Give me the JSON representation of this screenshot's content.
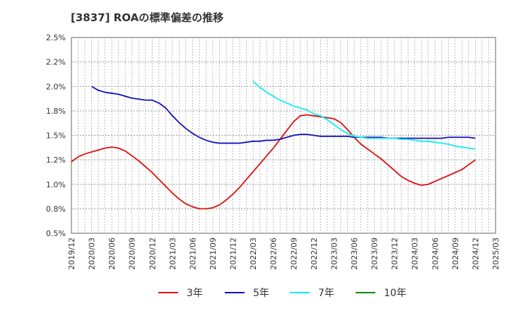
{
  "chart_data": {
    "type": "line",
    "title": "[3837]  ROAの標準偏差の推移",
    "xlabel": "",
    "ylabel": "",
    "ylim": [
      0.5,
      2.5
    ],
    "y_ticks": [
      "2.5%",
      "2.2%",
      "2.0%",
      "1.8%",
      "1.5%",
      "1.2%",
      "1.0%",
      "0.8%",
      "0.5%"
    ],
    "y_tick_values": [
      2.5,
      2.25,
      2.0,
      1.75,
      1.5,
      1.25,
      1.0,
      0.75,
      0.5
    ],
    "x_ticks": [
      "2019/12",
      "2020/03",
      "2020/06",
      "2020/09",
      "2020/12",
      "2021/03",
      "2021/06",
      "2021/09",
      "2021/12",
      "2022/03",
      "2022/06",
      "2022/09",
      "2022/12",
      "2023/03",
      "2023/06",
      "2023/09",
      "2023/12",
      "2024/03",
      "2024/06",
      "2024/09",
      "2024/12",
      "2025/03"
    ],
    "grid": true,
    "legend_position": "bottom",
    "series": [
      {
        "name": "3年",
        "color": "#dd1111",
        "values": [
          [
            "2019/12",
            1.23
          ],
          [
            "2020/01",
            1.28
          ],
          [
            "2020/02",
            1.31
          ],
          [
            "2020/03",
            1.33
          ],
          [
            "2020/04",
            1.35
          ],
          [
            "2020/05",
            1.37
          ],
          [
            "2020/06",
            1.38
          ],
          [
            "2020/07",
            1.37
          ],
          [
            "2020/08",
            1.34
          ],
          [
            "2020/09",
            1.29
          ],
          [
            "2020/10",
            1.24
          ],
          [
            "2020/11",
            1.18
          ],
          [
            "2020/12",
            1.12
          ],
          [
            "2021/01",
            1.05
          ],
          [
            "2021/02",
            0.98
          ],
          [
            "2021/03",
            0.91
          ],
          [
            "2021/04",
            0.85
          ],
          [
            "2021/05",
            0.8
          ],
          [
            "2021/06",
            0.77
          ],
          [
            "2021/07",
            0.75
          ],
          [
            "2021/08",
            0.75
          ],
          [
            "2021/09",
            0.76
          ],
          [
            "2021/10",
            0.79
          ],
          [
            "2021/11",
            0.84
          ],
          [
            "2021/12",
            0.9
          ],
          [
            "2022/01",
            0.97
          ],
          [
            "2022/02",
            1.05
          ],
          [
            "2022/03",
            1.13
          ],
          [
            "2022/04",
            1.21
          ],
          [
            "2022/05",
            1.29
          ],
          [
            "2022/06",
            1.37
          ],
          [
            "2022/07",
            1.46
          ],
          [
            "2022/08",
            1.55
          ],
          [
            "2022/09",
            1.64
          ],
          [
            "2022/10",
            1.7
          ],
          [
            "2022/11",
            1.71
          ],
          [
            "2022/12",
            1.7
          ],
          [
            "2023/01",
            1.69
          ],
          [
            "2023/02",
            1.68
          ],
          [
            "2023/03",
            1.67
          ],
          [
            "2023/04",
            1.63
          ],
          [
            "2023/05",
            1.56
          ],
          [
            "2023/06",
            1.48
          ],
          [
            "2023/07",
            1.41
          ],
          [
            "2023/08",
            1.36
          ],
          [
            "2023/09",
            1.31
          ],
          [
            "2023/10",
            1.26
          ],
          [
            "2023/11",
            1.2
          ],
          [
            "2023/12",
            1.14
          ],
          [
            "2024/01",
            1.08
          ],
          [
            "2024/02",
            1.04
          ],
          [
            "2024/03",
            1.01
          ],
          [
            "2024/04",
            0.99
          ],
          [
            "2024/05",
            1.0
          ],
          [
            "2024/06",
            1.03
          ],
          [
            "2024/07",
            1.06
          ],
          [
            "2024/08",
            1.09
          ],
          [
            "2024/09",
            1.12
          ],
          [
            "2024/10",
            1.15
          ],
          [
            "2024/11",
            1.2
          ],
          [
            "2024/12",
            1.25
          ]
        ]
      },
      {
        "name": "5年",
        "color": "#1111bb",
        "values": [
          [
            "2020/03",
            2.0
          ],
          [
            "2020/04",
            1.96
          ],
          [
            "2020/05",
            1.94
          ],
          [
            "2020/06",
            1.93
          ],
          [
            "2020/07",
            1.92
          ],
          [
            "2020/08",
            1.9
          ],
          [
            "2020/09",
            1.88
          ],
          [
            "2020/10",
            1.87
          ],
          [
            "2020/11",
            1.86
          ],
          [
            "2020/12",
            1.86
          ],
          [
            "2021/01",
            1.83
          ],
          [
            "2021/02",
            1.78
          ],
          [
            "2021/03",
            1.7
          ],
          [
            "2021/04",
            1.63
          ],
          [
            "2021/05",
            1.57
          ],
          [
            "2021/06",
            1.52
          ],
          [
            "2021/07",
            1.48
          ],
          [
            "2021/08",
            1.45
          ],
          [
            "2021/09",
            1.43
          ],
          [
            "2021/10",
            1.42
          ],
          [
            "2021/11",
            1.42
          ],
          [
            "2021/12",
            1.42
          ],
          [
            "2022/01",
            1.42
          ],
          [
            "2022/02",
            1.43
          ],
          [
            "2022/03",
            1.44
          ],
          [
            "2022/04",
            1.44
          ],
          [
            "2022/05",
            1.45
          ],
          [
            "2022/06",
            1.45
          ],
          [
            "2022/07",
            1.46
          ],
          [
            "2022/08",
            1.48
          ],
          [
            "2022/09",
            1.5
          ],
          [
            "2022/10",
            1.51
          ],
          [
            "2022/11",
            1.51
          ],
          [
            "2022/12",
            1.5
          ],
          [
            "2023/01",
            1.49
          ],
          [
            "2023/02",
            1.49
          ],
          [
            "2023/03",
            1.49
          ],
          [
            "2023/04",
            1.49
          ],
          [
            "2023/05",
            1.49
          ],
          [
            "2023/06",
            1.48
          ],
          [
            "2023/07",
            1.48
          ],
          [
            "2023/08",
            1.48
          ],
          [
            "2023/09",
            1.48
          ],
          [
            "2023/10",
            1.48
          ],
          [
            "2023/11",
            1.47
          ],
          [
            "2023/12",
            1.47
          ],
          [
            "2024/01",
            1.47
          ],
          [
            "2024/02",
            1.47
          ],
          [
            "2024/03",
            1.47
          ],
          [
            "2024/04",
            1.47
          ],
          [
            "2024/05",
            1.47
          ],
          [
            "2024/06",
            1.47
          ],
          [
            "2024/07",
            1.47
          ],
          [
            "2024/08",
            1.48
          ],
          [
            "2024/09",
            1.48
          ],
          [
            "2024/10",
            1.48
          ],
          [
            "2024/11",
            1.48
          ],
          [
            "2024/12",
            1.47
          ]
        ]
      },
      {
        "name": "7年",
        "color": "#11eeee",
        "values": [
          [
            "2022/03",
            2.05
          ],
          [
            "2022/04",
            1.99
          ],
          [
            "2022/05",
            1.94
          ],
          [
            "2022/06",
            1.9
          ],
          [
            "2022/07",
            1.86
          ],
          [
            "2022/08",
            1.83
          ],
          [
            "2022/09",
            1.8
          ],
          [
            "2022/10",
            1.78
          ],
          [
            "2022/11",
            1.76
          ],
          [
            "2022/12",
            1.72
          ],
          [
            "2023/01",
            1.7
          ],
          [
            "2023/02",
            1.66
          ],
          [
            "2023/03",
            1.61
          ],
          [
            "2023/04",
            1.56
          ],
          [
            "2023/05",
            1.52
          ],
          [
            "2023/06",
            1.49
          ],
          [
            "2023/07",
            1.48
          ],
          [
            "2023/08",
            1.47
          ],
          [
            "2023/09",
            1.47
          ],
          [
            "2023/10",
            1.47
          ],
          [
            "2023/11",
            1.47
          ],
          [
            "2023/12",
            1.47
          ],
          [
            "2024/01",
            1.46
          ],
          [
            "2024/02",
            1.46
          ],
          [
            "2024/03",
            1.45
          ],
          [
            "2024/04",
            1.44
          ],
          [
            "2024/05",
            1.44
          ],
          [
            "2024/06",
            1.43
          ],
          [
            "2024/07",
            1.42
          ],
          [
            "2024/08",
            1.41
          ],
          [
            "2024/09",
            1.39
          ],
          [
            "2024/10",
            1.38
          ],
          [
            "2024/11",
            1.37
          ],
          [
            "2024/12",
            1.36
          ]
        ]
      },
      {
        "name": "10年",
        "color": "#118811",
        "values": []
      }
    ]
  }
}
